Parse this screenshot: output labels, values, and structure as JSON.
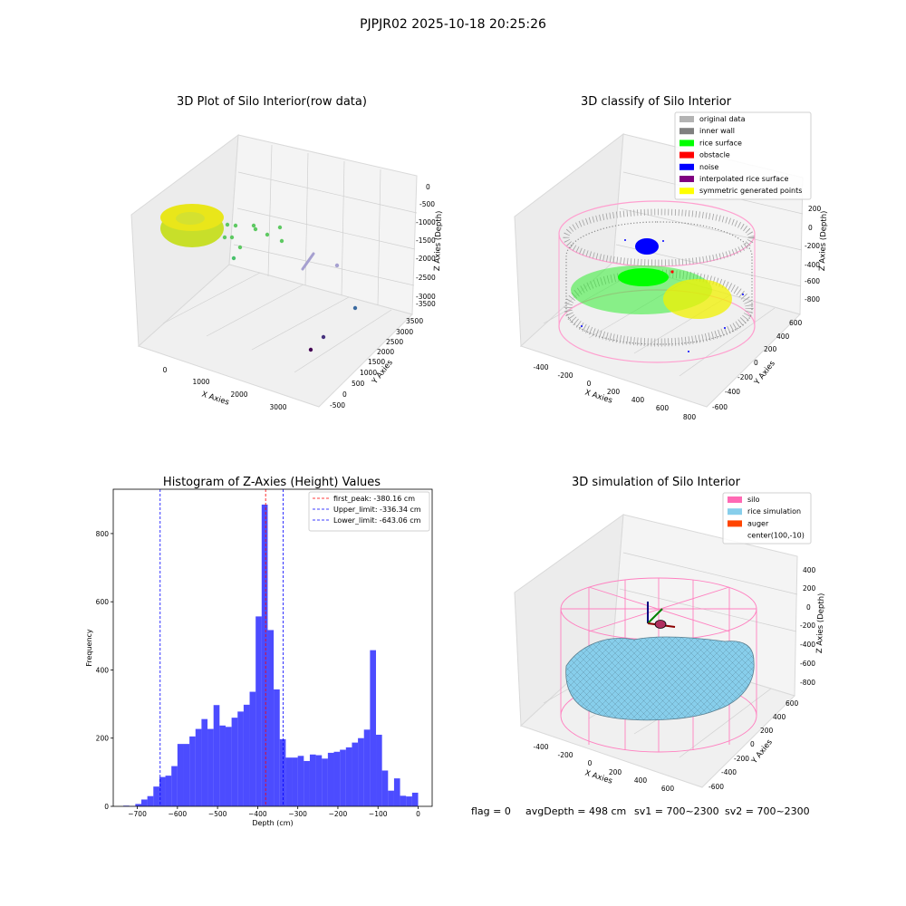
{
  "figure_title": "PJPJR02 2025-10-18 20:25:26",
  "status": {
    "flag": "flag = 0",
    "avg_depth": "avgDepth = 498 cm",
    "sv1": "sv1 = 700~2300",
    "sv2": "sv2 = 700~2300"
  },
  "chart_data": [
    {
      "type": "scatter",
      "title": "3D Plot of Silo Interior(row data)",
      "xlabel": "X Axies",
      "ylabel": "Y Axies",
      "zlabel": "Z Axies (Depth)",
      "x_ticks": [
        "0",
        "1000",
        "2000",
        "3000"
      ],
      "y_ticks": [
        "-500",
        "0",
        "500",
        "1000",
        "1500",
        "2000",
        "2500",
        "3000",
        "3500"
      ],
      "z_ticks": [
        "0",
        "-500",
        "-1000",
        "-1500",
        "-2000",
        "-2500",
        "-3000",
        "-3500"
      ],
      "grid": true
    },
    {
      "type": "scatter",
      "title": "3D classify of Silo Interior",
      "xlabel": "X Axies",
      "ylabel": "Y Axies",
      "zlabel": "Z Axies (Depth)",
      "x_ticks": [
        "-400",
        "-200",
        "0",
        "200",
        "400",
        "600",
        "800"
      ],
      "y_ticks": [
        "-600",
        "-400",
        "-200",
        "0",
        "200",
        "400",
        "600"
      ],
      "z_ticks": [
        "200",
        "0",
        "-200",
        "-400",
        "-600",
        "-800"
      ],
      "legend_position": "top-right",
      "legend": [
        {
          "label": "original data",
          "color": "#b3b3b3"
        },
        {
          "label": "inner wall",
          "color": "#808080"
        },
        {
          "label": "rice surface",
          "color": "#00ff00"
        },
        {
          "label": "obstacle",
          "color": "#ff0000"
        },
        {
          "label": "noise",
          "color": "#0000ff"
        },
        {
          "label": "interpolated rice surface",
          "color": "#800080"
        },
        {
          "label": "symmetric generated points",
          "color": "#ffff00"
        }
      ],
      "grid": true
    },
    {
      "type": "bar",
      "title": "Histogram of Z-Axies (Height) Values",
      "xlabel": "Depth (cm)",
      "ylabel": "Frequency",
      "bar_color": "#0000ff",
      "bin_width": 15,
      "bin_starts": [
        -735,
        -720,
        -705,
        -690,
        -675,
        -660,
        -645,
        -630,
        -615,
        -600,
        -585,
        -570,
        -555,
        -540,
        -525,
        -510,
        -495,
        -480,
        -465,
        -450,
        -435,
        -420,
        -405,
        -390,
        -375,
        -360,
        -345,
        -330,
        -315,
        -300,
        -285,
        -270,
        -255,
        -240,
        -225,
        -210,
        -195,
        -180,
        -165,
        -150,
        -135,
        -120,
        -105,
        -90,
        -75,
        -60,
        -45,
        -30,
        -15
      ],
      "values": [
        2,
        1,
        7,
        20,
        30,
        58,
        86,
        90,
        118,
        183,
        183,
        205,
        227,
        256,
        227,
        297,
        237,
        233,
        260,
        278,
        298,
        336,
        557,
        885,
        517,
        343,
        197,
        143,
        143,
        148,
        133,
        152,
        150,
        140,
        157,
        160,
        166,
        173,
        187,
        200,
        225,
        458,
        210,
        105,
        46,
        82,
        31,
        29,
        40
      ],
      "xlim": [
        -760,
        35
      ],
      "ylim": [
        0,
        930
      ],
      "x_ticks": [
        -700,
        -600,
        -500,
        -400,
        -300,
        -200,
        -100,
        0
      ],
      "x_tick_labels": [
        "−700",
        "−600",
        "−500",
        "−400",
        "−300",
        "−200",
        "−100",
        "0"
      ],
      "y_ticks": [
        0,
        200,
        400,
        600,
        800
      ],
      "y_tick_labels": [
        "0",
        "200",
        "400",
        "600",
        "800"
      ],
      "vlines": [
        {
          "x": -380.16,
          "color": "#ff0000",
          "label": "first_peak: -380.16 cm"
        },
        {
          "x": -336.34,
          "color": "#0000ff",
          "label": "Upper_limit: -336.34 cm"
        },
        {
          "x": -643.06,
          "color": "#0000ff",
          "label": "Lower_limit: -643.06 cm"
        }
      ],
      "legend_position": "top-right"
    },
    {
      "type": "area",
      "title": "3D simulation of Silo Interior",
      "xlabel": "X Axies",
      "ylabel": "Y Axies",
      "zlabel": "Z Axies (Depth)",
      "x_ticks": [
        "-400",
        "-200",
        "0",
        "200",
        "400",
        "600"
      ],
      "y_ticks": [
        "-600",
        "-400",
        "-200",
        "0",
        "200",
        "400",
        "600"
      ],
      "z_ticks": [
        "400",
        "200",
        "0",
        "-200",
        "-400",
        "-600",
        "-800"
      ],
      "legend_position": "top-right",
      "legend": [
        {
          "label": "silo",
          "color": "#ff69b4"
        },
        {
          "label": "rice simulation",
          "color": "#87ceeb"
        },
        {
          "label": "auger",
          "color": "#ff4500"
        },
        {
          "label": "center(100,-10)",
          "color": ""
        }
      ],
      "grid": true
    }
  ]
}
